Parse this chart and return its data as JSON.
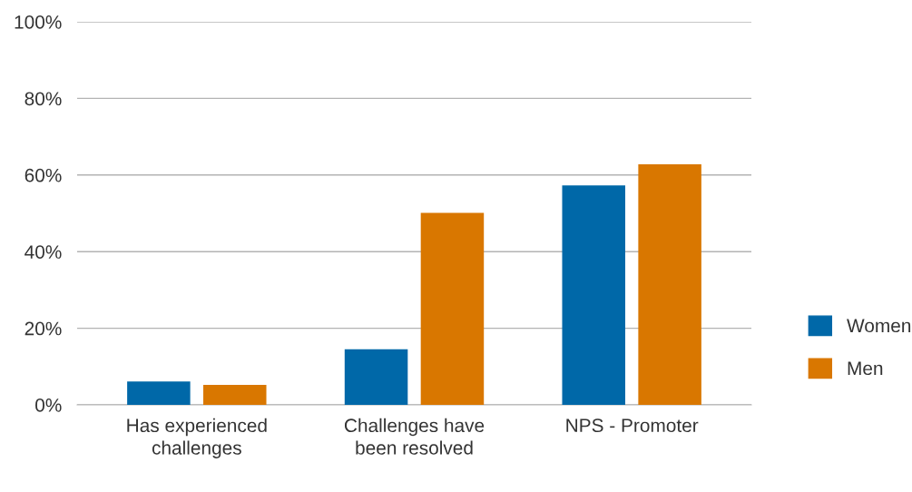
{
  "chart_data": {
    "type": "bar",
    "categories": [
      "Has experienced challenges",
      "Challenges have been resolved",
      "NPS - Promoter"
    ],
    "series": [
      {
        "name": "Women",
        "color": "#0068a8",
        "values": [
          6.1,
          14.5,
          57.3
        ]
      },
      {
        "name": "Men",
        "color": "#d97700",
        "values": [
          5.2,
          50.1,
          62.8
        ]
      }
    ],
    "ylim": [
      0,
      100
    ],
    "yticks": [
      {
        "value": 0,
        "label": "0%"
      },
      {
        "value": 20,
        "label": "20%"
      },
      {
        "value": 40,
        "label": "40%"
      },
      {
        "value": 60,
        "label": "60%"
      },
      {
        "value": 80,
        "label": "80%"
      },
      {
        "value": 100,
        "label": "100%"
      }
    ],
    "grid": "y",
    "legend": "right"
  }
}
